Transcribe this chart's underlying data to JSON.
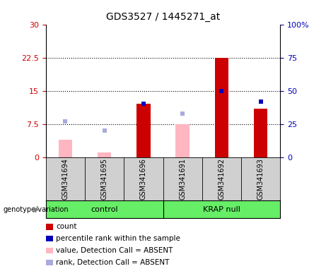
{
  "title": "GDS3527 / 1445271_at",
  "samples": [
    "GSM341694",
    "GSM341695",
    "GSM341696",
    "GSM341691",
    "GSM341692",
    "GSM341693"
  ],
  "count_values": [
    4.0,
    1.0,
    12.0,
    7.5,
    22.5,
    11.0
  ],
  "percentile_values": [
    27.0,
    20.0,
    40.0,
    33.0,
    50.0,
    42.0
  ],
  "is_absent": [
    true,
    true,
    false,
    true,
    false,
    false
  ],
  "ylim_left": [
    0,
    30
  ],
  "ylim_right": [
    0,
    100
  ],
  "yticks_left": [
    0,
    7.5,
    15,
    22.5,
    30
  ],
  "ytick_labels_left": [
    "0",
    "7.5",
    "15",
    "22.5",
    "30"
  ],
  "yticks_right": [
    0,
    25,
    50,
    75,
    100
  ],
  "ytick_labels_right": [
    "0",
    "25",
    "50",
    "75",
    "100%"
  ],
  "hlines": [
    7.5,
    15,
    22.5
  ],
  "bar_width": 0.35,
  "bar_color_present": "#cc0000",
  "bar_color_absent": "#ffb6c1",
  "square_color_present": "#0000bb",
  "square_color_absent": "#aaaadd",
  "group_label": "genotype/variation",
  "group1_label": "control",
  "group2_label": "KRAP null",
  "group_bg": "#66ee66",
  "sample_bg": "#d0d0d0",
  "legend_items": [
    {
      "label": "count",
      "color": "#cc0000"
    },
    {
      "label": "percentile rank within the sample",
      "color": "#0000bb"
    },
    {
      "label": "value, Detection Call = ABSENT",
      "color": "#ffb6c1"
    },
    {
      "label": "rank, Detection Call = ABSENT",
      "color": "#aaaadd"
    }
  ],
  "axis_label_color_left": "#cc0000",
  "axis_label_color_right": "#0000bb",
  "title_fontsize": 10,
  "tick_fontsize": 8,
  "label_fontsize": 7,
  "legend_fontsize": 7.5
}
